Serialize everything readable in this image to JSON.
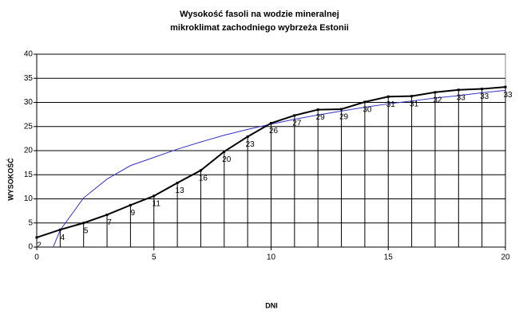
{
  "chart_data": {
    "type": "line",
    "title": "Wysokość fasoli na wodzie mineralnej",
    "subtitle": "mikroklimat zachodniego wybrzeża Estonii",
    "x_label": "DNI",
    "y_label": "WYSOKOŚĆ",
    "x": [
      0,
      1,
      2,
      3,
      4,
      5,
      6,
      7,
      8,
      9,
      10,
      11,
      12,
      13,
      14,
      15,
      16,
      17,
      18,
      19,
      20
    ],
    "xlim": [
      0,
      20
    ],
    "xticks": [
      0,
      5,
      10,
      15,
      20
    ],
    "ylim": [
      0,
      40
    ],
    "yticks": [
      0,
      5,
      10,
      15,
      20,
      25,
      30,
      35,
      40
    ],
    "grid": true,
    "drop_lines": true,
    "series": [
      {
        "color": "#000000",
        "values": [
          2,
          3.6,
          5,
          6.7,
          8.7,
          10.6,
          13.3,
          15.9,
          19.8,
          22.9,
          25.7,
          27.3,
          28.5,
          28.6,
          30.1,
          31.2,
          31.3,
          32.1,
          32.6,
          32.8,
          33.2
        ],
        "value_labels": [
          "2",
          "4",
          "5",
          "7",
          "9",
          "11",
          "13",
          "16",
          "20",
          "23",
          "26",
          "27",
          "29",
          "29",
          "30",
          "31",
          "31",
          "32",
          "33",
          "33",
          "33"
        ]
      }
    ],
    "trendline": {
      "color": "#3333cc",
      "x": [
        0.7,
        1,
        2,
        3,
        4,
        5,
        6,
        7,
        8,
        9,
        10,
        11,
        12,
        13,
        14,
        15,
        16,
        17,
        18,
        19,
        20
      ],
      "values": [
        0,
        3.5,
        10.2,
        14.1,
        16.9,
        18.6,
        20.3,
        21.8,
        23.2,
        24.4,
        25.5,
        26.5,
        27.4,
        28.2,
        29,
        29.7,
        30.3,
        30.9,
        31.4,
        32,
        32.5
      ]
    }
  }
}
